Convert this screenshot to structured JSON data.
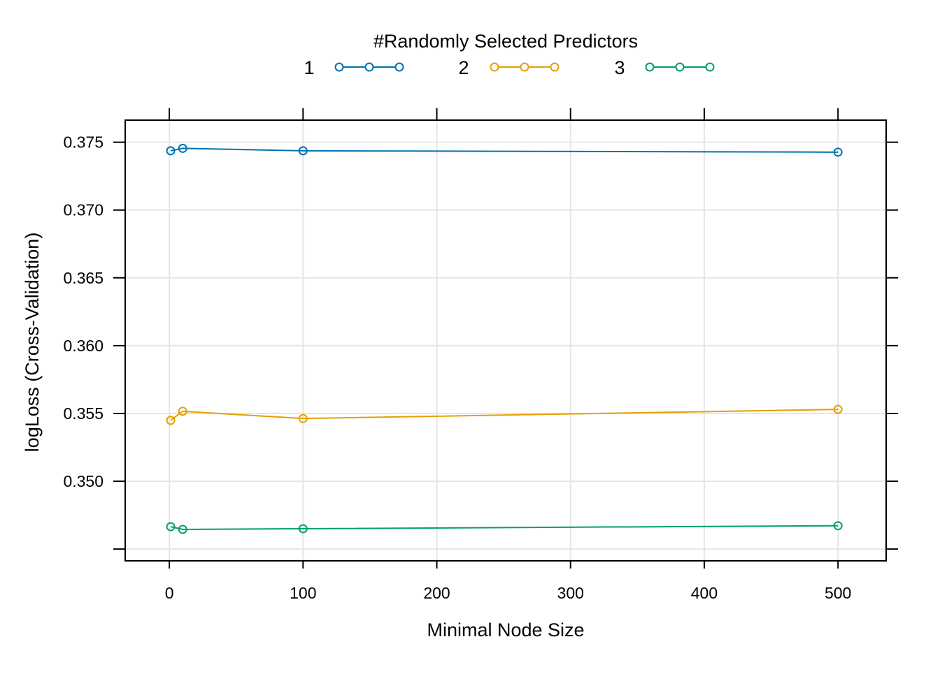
{
  "chart_data": {
    "type": "line",
    "legend_title": "#Randomly Selected Predictors",
    "legend_position": "top",
    "xlabel": "Minimal Node Size",
    "ylabel": "logLoss (Cross-Validation)",
    "x": [
      1,
      10,
      100,
      500
    ],
    "xlim": [
      -33,
      536
    ],
    "ylim": [
      0.34413,
      0.37663
    ],
    "x_ticks": [
      0,
      100,
      200,
      300,
      400,
      500
    ],
    "x_tick_labels": [
      "0",
      "100",
      "200",
      "300",
      "400",
      "500"
    ],
    "y_ticks": [
      0.345,
      0.35,
      0.355,
      0.36,
      0.365,
      0.37,
      0.375
    ],
    "y_tick_labels": [
      "",
      "0.350",
      "0.355",
      "0.360",
      "0.365",
      "0.370",
      "0.375"
    ],
    "grid": true,
    "series": [
      {
        "name": "1",
        "color": "#0072B2",
        "values": [
          0.37437,
          0.37455,
          0.37437,
          0.37427
        ]
      },
      {
        "name": "2",
        "color": "#E69F00",
        "values": [
          0.35449,
          0.35516,
          0.35463,
          0.3553
        ]
      },
      {
        "name": "3",
        "color": "#009E73",
        "values": [
          0.34665,
          0.34645,
          0.3465,
          0.34672
        ]
      }
    ]
  }
}
